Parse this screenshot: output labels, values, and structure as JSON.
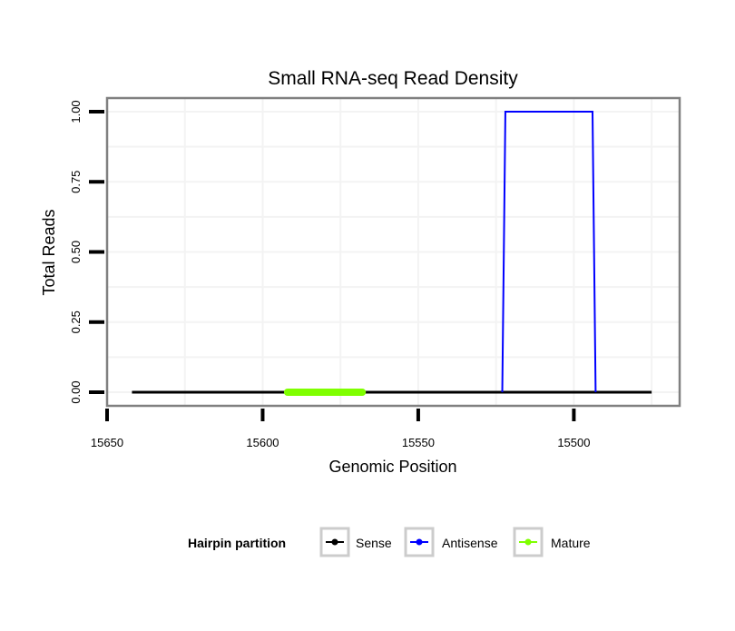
{
  "chart_data": {
    "type": "line",
    "title": "Small RNA-seq Read Density",
    "xlabel": "Genomic Position",
    "ylabel": "Total Reads",
    "xlim": [
      15650,
      15466
    ],
    "x_reversed": true,
    "ylim": [
      -0.0485,
      1.0485
    ],
    "x_ticks": [
      15650,
      15600,
      15550,
      15500
    ],
    "x_tick_labels": [
      "15650",
      "15600",
      "15550",
      "15500"
    ],
    "y_ticks": [
      0,
      0.25,
      0.5,
      0.75,
      1
    ],
    "y_tick_labels": [
      "0.00",
      "0.25",
      "0.50",
      "0.75",
      "1.00"
    ],
    "grid": true,
    "legend": {
      "title": "Hairpin partition",
      "placement": "bottom",
      "entries": [
        "Sense",
        "Antisense",
        "Mature"
      ]
    },
    "series": [
      {
        "name": "Sense",
        "color": "#000000",
        "x": [
          15642,
          15475
        ],
        "y": [
          0,
          0
        ]
      },
      {
        "name": "Antisense",
        "color": "#0000ff",
        "x": [
          15523,
          15522,
          15494,
          15493
        ],
        "y": [
          0,
          1,
          1,
          0
        ]
      },
      {
        "name": "Mature",
        "color": "#7fff00",
        "x": [
          15592,
          15568
        ],
        "y": [
          0,
          0
        ]
      }
    ]
  }
}
